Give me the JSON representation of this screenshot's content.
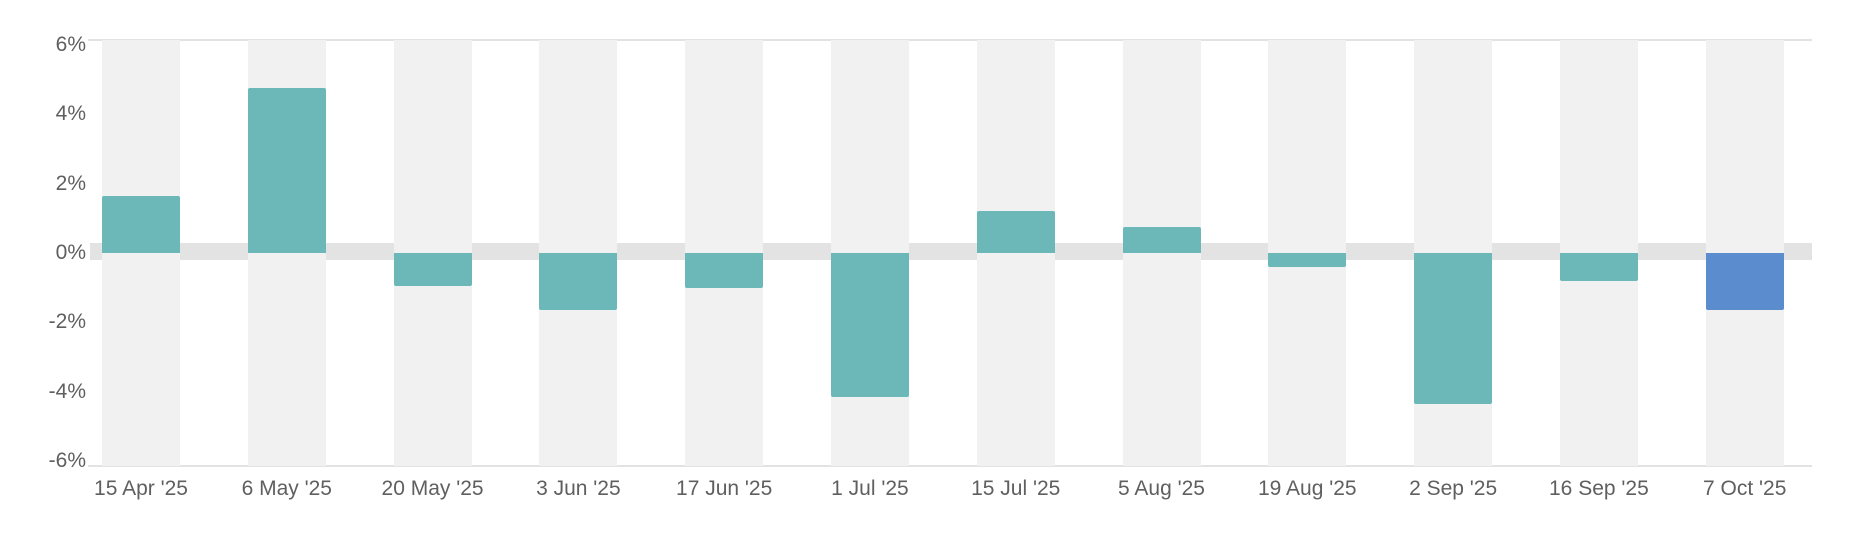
{
  "chart_data": {
    "type": "bar",
    "title": "",
    "xlabel": "",
    "ylabel": "",
    "unit": "%",
    "categories": [
      "15 Apr '25",
      "6 May '25",
      "20 May '25",
      "3 Jun '25",
      "17 Jun '25",
      "1 Jul '25",
      "15 Jul '25",
      "5 Aug '25",
      "19 Aug '25",
      "2 Sep '25",
      "16 Sep '25",
      "7 Oct '25"
    ],
    "values": [
      1.65,
      4.75,
      -0.95,
      -1.65,
      -1.0,
      -4.15,
      1.2,
      0.75,
      -0.4,
      -4.35,
      -0.8,
      -1.65
    ],
    "highlight_index": 11,
    "y_ticks": [
      6,
      4,
      2,
      0,
      -2,
      -4,
      -6
    ],
    "y_tick_labels": [
      "6%",
      "4%",
      "2%",
      "0%",
      "-2%",
      "-4%",
      "-6%"
    ],
    "ylim": [
      -6,
      6
    ],
    "legend": null,
    "grid": "none",
    "colors": {
      "bar": "#6cb7b7",
      "bar_highlight": "#5b8ccd",
      "category_stripe": "#f1f1f1",
      "zero_band": "#e3e3e3",
      "plot_border": "#e2e2e2",
      "label_text": "#5f5f5f",
      "background": "#ffffff"
    }
  }
}
